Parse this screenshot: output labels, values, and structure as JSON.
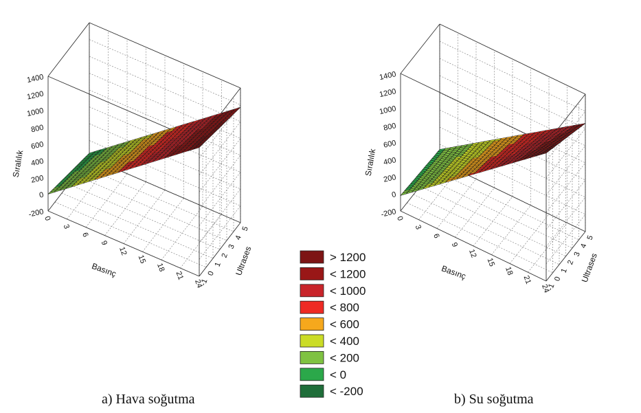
{
  "legend": {
    "items": [
      {
        "label": "> 1200",
        "color": "#7d1414"
      },
      {
        "label": "< 1200",
        "color": "#991717"
      },
      {
        "label": "< 1000",
        "color": "#c8242a"
      },
      {
        "label": "< 800",
        "color": "#ee2a24"
      },
      {
        "label": "< 600",
        "color": "#f6a81c"
      },
      {
        "label": "< 400",
        "color": "#cbdc26"
      },
      {
        "label": "< 200",
        "color": "#7fc242"
      },
      {
        "label": "< 0",
        "color": "#2ba84a"
      },
      {
        "label": "< -200",
        "color": "#1f6e3a"
      }
    ]
  },
  "chart_data": [
    {
      "type": "surface",
      "caption": "a) Hava soğutma",
      "xlabel": "Basınç",
      "ylabel": "Ultrases",
      "zlabel": "Sıralılık",
      "x_ticks": [
        "24",
        "21",
        "18",
        "15",
        "12",
        "9",
        "6",
        "3",
        "0"
      ],
      "y_ticks": [
        "-1",
        "0",
        "1",
        "2",
        "3",
        "4",
        "5"
      ],
      "z_ticks": [
        "-200",
        "0",
        "200",
        "400",
        "600",
        "800",
        "1000",
        "1200",
        "1400"
      ],
      "xlim": [
        0,
        24
      ],
      "ylim": [
        -1,
        5
      ],
      "zlim": [
        -200,
        1400
      ],
      "surface": {
        "z_at_x0_y_min": 0,
        "z_at_x0_y_max": -150,
        "z_at_x24_y_min": 1330,
        "z_at_x24_y_max": 1170
      },
      "grid": true
    },
    {
      "type": "surface",
      "caption": "b) Su soğutma",
      "xlabel": "Basınç",
      "ylabel": "Ultrases",
      "zlabel": "Sıralılık",
      "x_ticks": [
        "24",
        "21",
        "18",
        "15",
        "12",
        "9",
        "6",
        "3",
        "0"
      ],
      "y_ticks": [
        "-1",
        "0",
        "1",
        "2",
        "3",
        "4",
        "5"
      ],
      "z_ticks": [
        "-200",
        "0",
        "200",
        "400",
        "600",
        "800",
        "1000",
        "1200",
        "1400"
      ],
      "xlim": [
        0,
        24
      ],
      "ylim": [
        -1,
        5
      ],
      "zlim": [
        -200,
        1400
      ],
      "surface": {
        "z_at_x0_y_min": -20,
        "z_at_x0_y_max": -60,
        "z_at_x24_y_min": 1290,
        "z_at_x24_y_max": 1060
      },
      "grid": true
    }
  ]
}
